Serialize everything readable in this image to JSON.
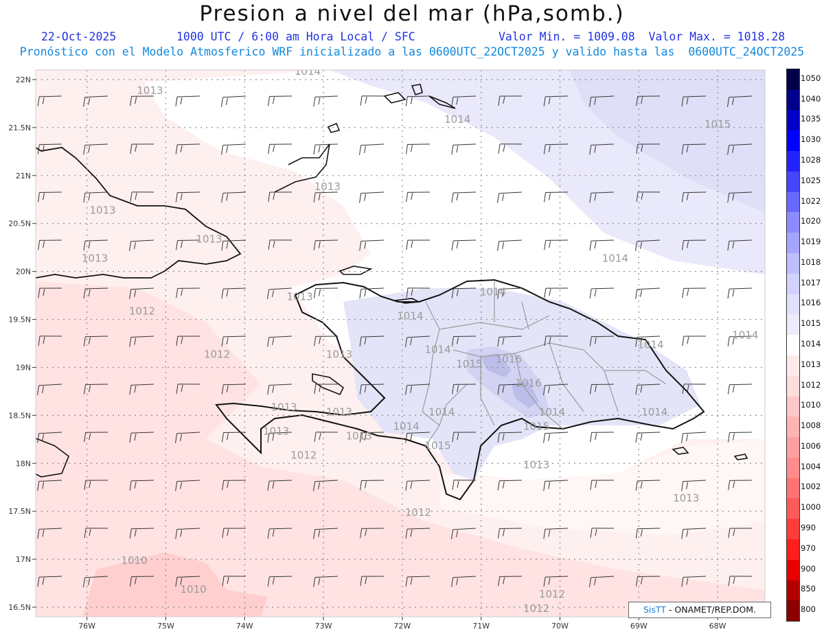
{
  "header": {
    "title": "Presion a nivel del mar (hPa,somb.)",
    "date": "22-Oct-2025",
    "time": "1000 UTC / 6:00 am Hora Local / SFC",
    "min_max": "Valor Min. = 1009.08  Valor Max. = 1018.28",
    "model_line": "Pronóstico con el Modelo Atmosferico WRF inicializado a las 0600UTC_22OCT2025 y valido hasta las  0600UTC_24OCT2025"
  },
  "axes": {
    "lat_labels": [
      "22N",
      "21.5N",
      "21N",
      "20.5N",
      "20N",
      "19.5N",
      "19N",
      "18.5N",
      "18N",
      "17.5N",
      "17N",
      "16.5N"
    ],
    "lon_labels": [
      "76W",
      "75W",
      "74W",
      "73W",
      "72W",
      "71W",
      "70W",
      "69W",
      "68W"
    ],
    "lat_values": [
      22,
      21.5,
      21,
      20.5,
      20,
      19.5,
      19,
      18.5,
      18,
      17.5,
      17,
      16.5
    ],
    "lon_values": [
      -76,
      -75,
      -74,
      -73,
      -72,
      -71,
      -70,
      -69,
      -68
    ],
    "lat_range": [
      16.4,
      22.1
    ],
    "lon_range": [
      -76.65,
      -67.4
    ]
  },
  "isobar_labels": [
    {
      "text": "1014",
      "lon": -73.2,
      "lat": 22.05
    },
    {
      "text": "1013",
      "lon": -75.2,
      "lat": 21.85
    },
    {
      "text": "1013",
      "lon": -72.95,
      "lat": 20.85
    },
    {
      "text": "1013",
      "lon": -75.8,
      "lat": 20.6
    },
    {
      "text": "1013",
      "lon": -74.45,
      "lat": 20.3
    },
    {
      "text": "1013",
      "lon": -75.9,
      "lat": 20.1
    },
    {
      "text": "1012",
      "lon": -75.3,
      "lat": 19.55
    },
    {
      "text": "1012",
      "lon": -74.35,
      "lat": 19.1
    },
    {
      "text": "1013",
      "lon": -73.3,
      "lat": 19.7
    },
    {
      "text": "1013",
      "lon": -72.8,
      "lat": 19.1
    },
    {
      "text": "1014",
      "lon": -71.9,
      "lat": 19.5
    },
    {
      "text": "1014",
      "lon": -71.55,
      "lat": 19.15
    },
    {
      "text": "1015",
      "lon": -71.15,
      "lat": 19.0
    },
    {
      "text": "1016",
      "lon": -70.65,
      "lat": 19.05
    },
    {
      "text": "1016",
      "lon": -70.4,
      "lat": 18.8
    },
    {
      "text": "1014",
      "lon": -70.85,
      "lat": 19.75
    },
    {
      "text": "1014",
      "lon": -71.3,
      "lat": 21.55
    },
    {
      "text": "1014",
      "lon": -69.3,
      "lat": 20.1
    },
    {
      "text": "1015",
      "lon": -68.0,
      "lat": 21.5
    },
    {
      "text": "1014",
      "lon": -67.65,
      "lat": 19.3
    },
    {
      "text": "1014",
      "lon": -68.85,
      "lat": 19.2
    },
    {
      "text": "1014",
      "lon": -68.8,
      "lat": 18.5
    },
    {
      "text": "1015",
      "lon": -70.3,
      "lat": 18.35
    },
    {
      "text": "1014",
      "lon": -70.1,
      "lat": 18.5
    },
    {
      "text": "1014",
      "lon": -71.5,
      "lat": 18.5
    },
    {
      "text": "1015",
      "lon": -71.55,
      "lat": 18.15
    },
    {
      "text": "1014",
      "lon": -71.95,
      "lat": 18.35
    },
    {
      "text": "1013",
      "lon": -72.55,
      "lat": 18.25
    },
    {
      "text": "1013",
      "lon": -73.5,
      "lat": 18.55
    },
    {
      "text": "1013",
      "lon": -73.6,
      "lat": 18.3
    },
    {
      "text": "1012",
      "lon": -73.25,
      "lat": 18.05
    },
    {
      "text": "1013",
      "lon": -72.8,
      "lat": 18.5
    },
    {
      "text": "1013",
      "lon": -70.3,
      "lat": 17.95
    },
    {
      "text": "1013",
      "lon": -68.4,
      "lat": 17.6
    },
    {
      "text": "1012",
      "lon": -71.8,
      "lat": 17.45
    },
    {
      "text": "1010",
      "lon": -75.4,
      "lat": 16.95
    },
    {
      "text": "1010",
      "lon": -74.65,
      "lat": 16.65
    },
    {
      "text": "1012",
      "lon": -70.1,
      "lat": 16.6
    },
    {
      "text": "1012",
      "lon": -70.3,
      "lat": 16.45
    }
  ],
  "legend": {
    "labels": [
      "1050",
      "1040",
      "1035",
      "1030",
      "1028",
      "1025",
      "1022",
      "1020",
      "1019",
      "1018",
      "1017",
      "1016",
      "1015",
      "1014",
      "1013",
      "1012",
      "1010",
      "1008",
      "1006",
      "1004",
      "1002",
      "1000",
      "990",
      "970",
      "900",
      "850",
      "800"
    ],
    "colors": [
      "#00004a",
      "#00008c",
      "#0000c8",
      "#0000ff",
      "#2323ff",
      "#4646ff",
      "#6969ff",
      "#8c8cff",
      "#a5a5ff",
      "#bebeff",
      "#d2d2ff",
      "#e1e1fa",
      "#ececfc",
      "#ffffff",
      "#ffeaea",
      "#ffdcdc",
      "#ffc8c8",
      "#ffb4b4",
      "#ffa0a0",
      "#ff8c8c",
      "#ff7373",
      "#ff5a5a",
      "#ff3c3c",
      "#ff1e1e",
      "#e60000",
      "#b40000",
      "#8c0000"
    ]
  },
  "credit": {
    "brand": "SisTT",
    "text": "- ONAMET/REP.DOM."
  }
}
